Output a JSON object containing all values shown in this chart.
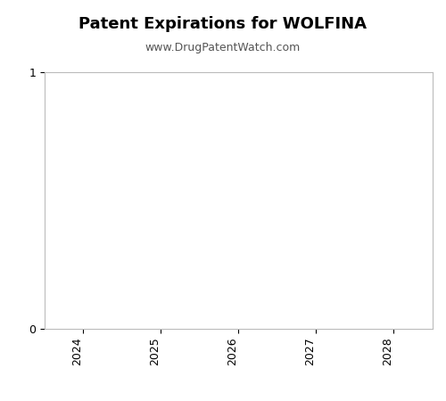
{
  "title": "Patent Expirations for WOLFINA",
  "subtitle": "www.DrugPatentWatch.com",
  "title_fontsize": 13,
  "subtitle_fontsize": 9,
  "title_fontweight": "bold",
  "subtitle_color": "#555555",
  "x_years": [
    2024,
    2025,
    2026,
    2027,
    2028
  ],
  "xlim": [
    2023.5,
    2028.5
  ],
  "ylim": [
    0,
    1
  ],
  "yticks": [
    0,
    1
  ],
  "background_color": "#ffffff",
  "axes_facecolor": "#ffffff",
  "spine_color": "#bbbbbb",
  "xlabel_rotation": 90,
  "tick_fontsize": 9
}
